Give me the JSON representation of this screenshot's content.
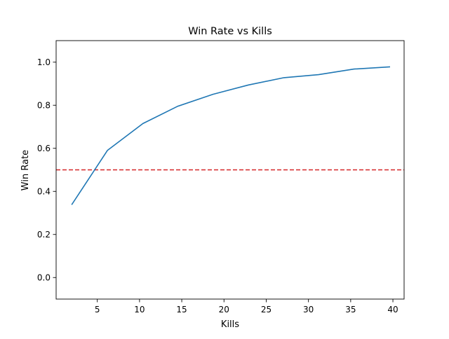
{
  "chart_data": {
    "type": "line",
    "title": "Win Rate vs Kills",
    "xlabel": "Kills",
    "ylabel": "Win Rate",
    "xlim": [
      0.125,
      41.325
    ],
    "ylim": [
      -0.1,
      1.1
    ],
    "x_ticks": [
      5,
      10,
      15,
      20,
      25,
      30,
      35,
      40
    ],
    "y_ticks": [
      0.0,
      0.2,
      0.4,
      0.6,
      0.8,
      1.0
    ],
    "x_tick_labels": [
      "5",
      "10",
      "15",
      "20",
      "25",
      "30",
      "35",
      "40"
    ],
    "y_tick_labels": [
      "0.0",
      "0.2",
      "0.4",
      "0.6",
      "0.8",
      "1.0"
    ],
    "grid": false,
    "legend": false,
    "series": [
      {
        "color": "#1f77b4",
        "x": [
          2.0,
          6.2,
          10.4,
          14.5,
          18.7,
          22.9,
          27.1,
          31.2,
          35.4,
          39.6
        ],
        "y": [
          0.34,
          0.59,
          0.715,
          0.795,
          0.851,
          0.894,
          0.928,
          0.942,
          0.968,
          0.978
        ]
      }
    ],
    "hlines": [
      {
        "y": 0.5,
        "color": "#d62728",
        "style": "dashed"
      }
    ]
  }
}
